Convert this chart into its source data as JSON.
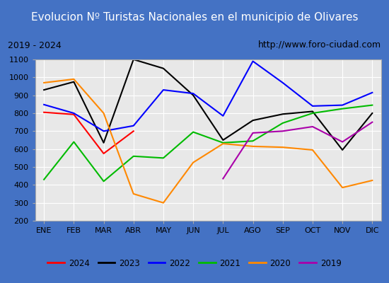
{
  "title": "Evolucion Nº Turistas Nacionales en el municipio de Olivares",
  "subtitle_left": "2019 - 2024",
  "subtitle_right": "http://www.foro-ciudad.com",
  "months": [
    "ENE",
    "FEB",
    "MAR",
    "ABR",
    "MAY",
    "JUN",
    "JUL",
    "AGO",
    "SEP",
    "OCT",
    "NOV",
    "DIC"
  ],
  "ylim": [
    200,
    1100
  ],
  "yticks": [
    200,
    300,
    400,
    500,
    600,
    700,
    800,
    900,
    1000,
    1100
  ],
  "series": {
    "2024": {
      "color": "#ff0000",
      "values": [
        805,
        793,
        575,
        700,
        null,
        null,
        null,
        null,
        null,
        null,
        null,
        null
      ]
    },
    "2023": {
      "color": "#000000",
      "values": [
        930,
        975,
        635,
        1100,
        1050,
        900,
        650,
        760,
        795,
        810,
        595,
        800
      ]
    },
    "2022": {
      "color": "#0000ff",
      "values": [
        848,
        800,
        700,
        730,
        930,
        910,
        785,
        1090,
        970,
        840,
        845,
        915
      ]
    },
    "2021": {
      "color": "#00bb00",
      "values": [
        430,
        640,
        420,
        560,
        550,
        695,
        635,
        645,
        745,
        800,
        825,
        845
      ]
    },
    "2020": {
      "color": "#ff8800",
      "values": [
        970,
        990,
        800,
        350,
        300,
        525,
        630,
        615,
        610,
        595,
        385,
        425
      ]
    },
    "2019": {
      "color": "#aa00aa",
      "values": [
        null,
        null,
        null,
        null,
        null,
        null,
        435,
        690,
        700,
        725,
        640,
        750
      ]
    }
  },
  "legend_order": [
    "2024",
    "2023",
    "2022",
    "2021",
    "2020",
    "2019"
  ],
  "title_bg_color": "#4472c4",
  "title_font_color": "#ffffff",
  "subtitle_bg_color": "#e8e8e8",
  "plot_bg_color": "#e8e8e8",
  "grid_color": "#ffffff",
  "border_color": "#4472c4"
}
